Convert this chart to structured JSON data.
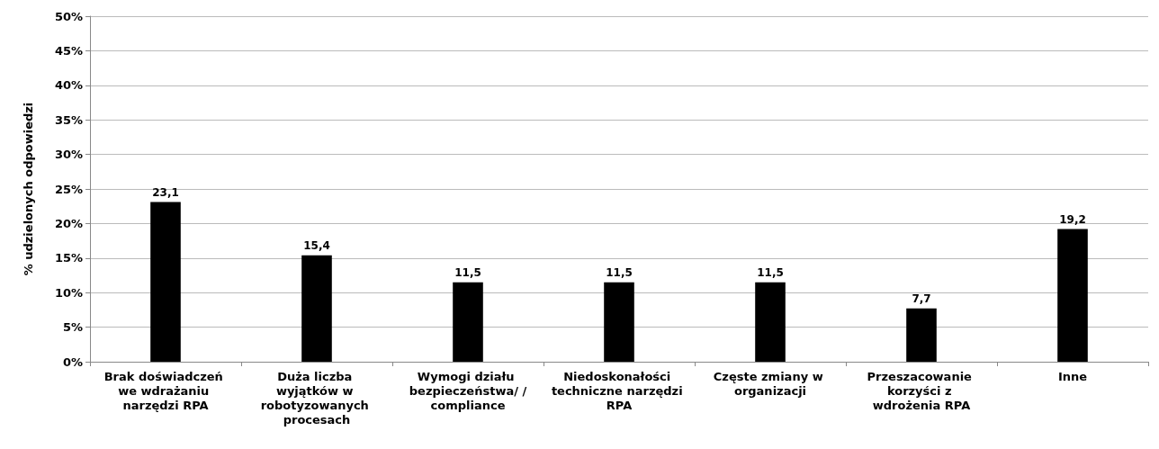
{
  "chart_data": {
    "type": "bar",
    "ylabel": "% udzielonych odpowiedzi",
    "categories": [
      "Brak doświadczeń we wdrażaniu narzędzi RPA",
      "Duża liczba wyjątków w robotyzowanych procesach",
      "Wymogi działu bezpieczeństwa/ /compliance",
      "Niedoskonałości techniczne narzędzi RPA",
      "Częste zmiany w organizacji",
      "Przeszacowanie korzyści z wdrożenia RPA",
      "Inne"
    ],
    "values": [
      23.1,
      15.4,
      11.5,
      11.5,
      11.5,
      7.7,
      19.2
    ],
    "value_labels": [
      "23,1",
      "15,4",
      "11,5",
      "11,5",
      "11,5",
      "7,7",
      "19,2"
    ],
    "color": "#000000",
    "ylim": [
      0,
      50
    ],
    "yticks": [
      {
        "value": 0,
        "label": "0%"
      },
      {
        "value": 5,
        "label": "5%"
      },
      {
        "value": 10,
        "label": "10%"
      },
      {
        "value": 15,
        "label": "15%"
      },
      {
        "value": 20,
        "label": "20%"
      },
      {
        "value": 25,
        "label": "25%"
      },
      {
        "value": 30,
        "label": "30%"
      },
      {
        "value": 35,
        "label": "35%"
      },
      {
        "value": 40,
        "label": "40%"
      },
      {
        "value": 45,
        "label": "45%"
      },
      {
        "value": 50,
        "label": "50%"
      }
    ],
    "grid": "y"
  }
}
